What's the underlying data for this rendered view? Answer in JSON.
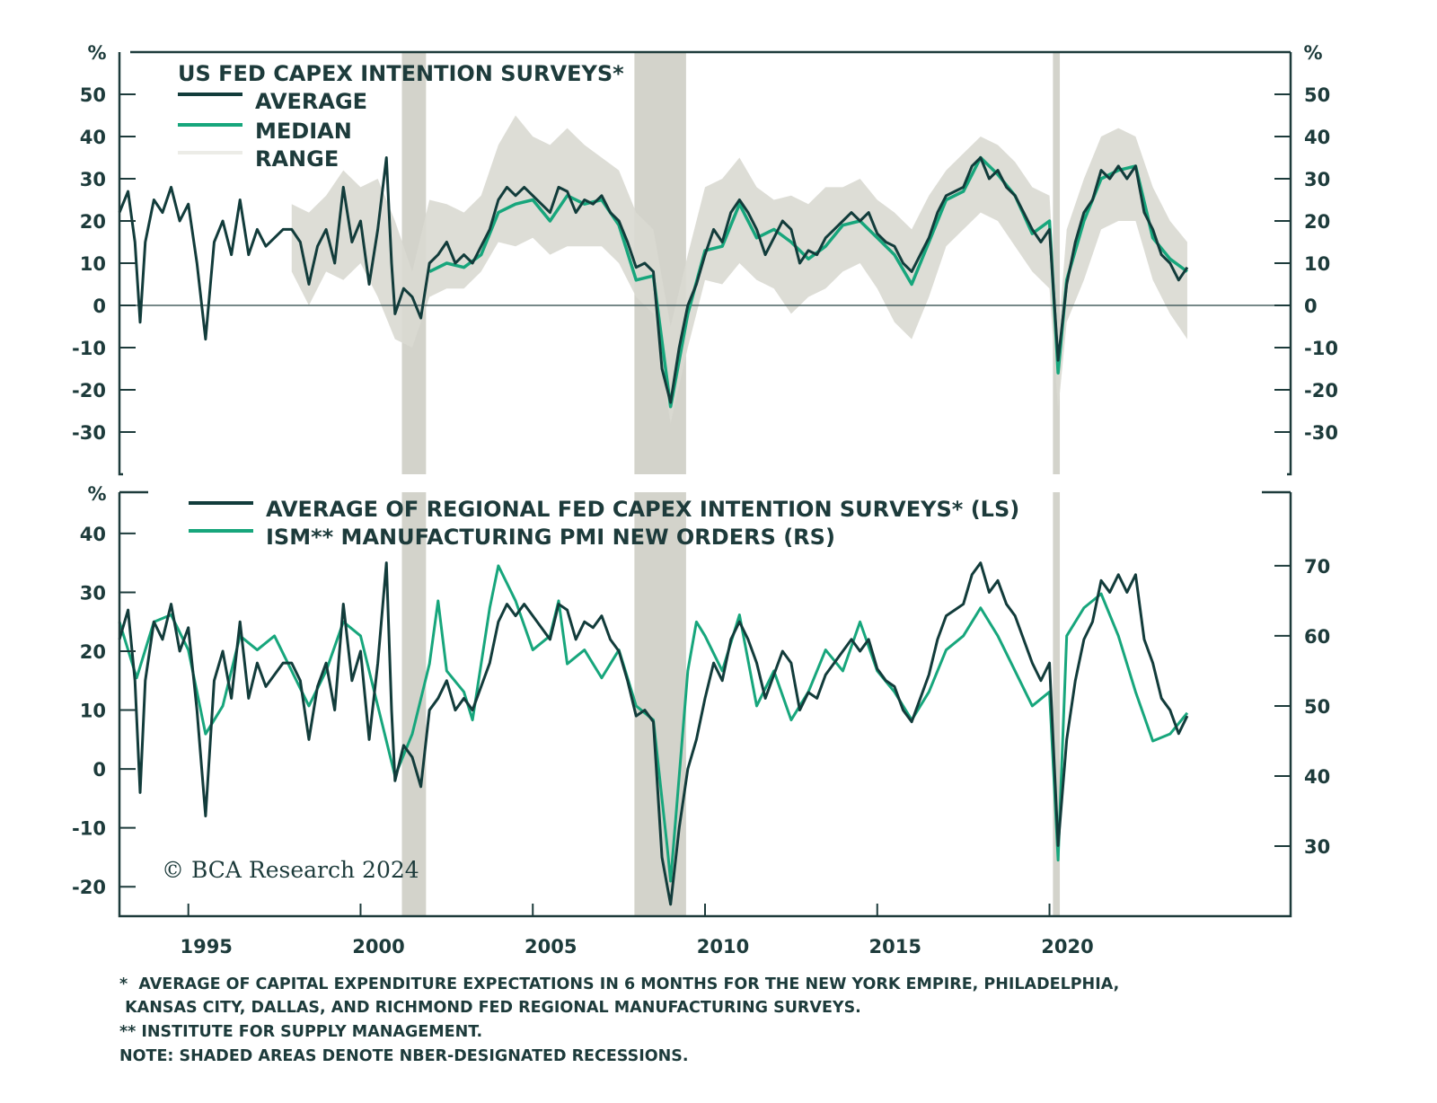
{
  "chart_data": {
    "type": "line",
    "colors": {
      "average": "#123c3b",
      "median": "#17a67c",
      "range": "#d9d9d2",
      "recession": "#d3d3cb",
      "axis": "#1d3b3b"
    },
    "x_ticks": [
      "1995",
      "2000",
      "2005",
      "2010",
      "2015",
      "2020"
    ],
    "x_tick_values": [
      1995,
      2000,
      2005,
      2010,
      2015,
      2020
    ],
    "xlim": [
      1993,
      2027
    ],
    "recessions": [
      [
        2001.2,
        2001.9
      ],
      [
        2007.95,
        2009.45
      ],
      [
        2020.1,
        2020.3
      ]
    ],
    "copyright": "© BCA Research 2024",
    "footnotes": [
      "*  AVERAGE OF CAPITAL EXPENDITURE EXPECTATIONS IN 6 MONTHS FOR THE NEW YORK EMPIRE, PHILADELPHIA,",
      " KANSAS CITY, DALLAS, AND RICHMOND FED REGIONAL MANUFACTURING SURVEYS.",
      "** INSTITUTE FOR SUPPLY MANAGEMENT.",
      "NOTE: SHADED AREAS DENOTE NBER-DESIGNATED RECESSIONS."
    ],
    "panels": [
      {
        "title": "US FED CAPEX INTENTION SURVEYS*",
        "unit_left": "%",
        "unit_right": "%",
        "ylim": [
          -40,
          60
        ],
        "y_ticks": [
          "50",
          "40",
          "30",
          "20",
          "10",
          "0",
          "-10",
          "-20",
          "-30"
        ],
        "y_tick_values": [
          50,
          40,
          30,
          20,
          10,
          0,
          -10,
          -20,
          -30
        ],
        "legend": [
          "AVERAGE",
          "MEDIAN",
          "RANGE"
        ],
        "zero_line": true
      },
      {
        "unit_left": "%",
        "ylim_left": [
          -25,
          47
        ],
        "ylim_right": [
          20,
          80.5
        ],
        "y_ticks_left": [
          "40",
          "30",
          "20",
          "10",
          "0",
          "-10",
          "-20"
        ],
        "y_tick_values_left": [
          40,
          30,
          20,
          10,
          0,
          -10,
          -20
        ],
        "y_ticks_right": [
          "70",
          "60",
          "50",
          "40",
          "30"
        ],
        "y_tick_values_right": [
          70,
          60,
          50,
          40,
          30
        ],
        "legend": [
          "AVERAGE OF REGIONAL FED CAPEX INTENTION SURVEYS* (LS)",
          "ISM** MANUFACTURING PMI NEW ORDERS (RS)"
        ]
      }
    ],
    "series": {
      "average": [
        [
          1993,
          22
        ],
        [
          1993.25,
          27
        ],
        [
          1993.45,
          15
        ],
        [
          1993.6,
          -4
        ],
        [
          1993.75,
          15
        ],
        [
          1994,
          25
        ],
        [
          1994.25,
          22
        ],
        [
          1994.5,
          28
        ],
        [
          1994.75,
          20
        ],
        [
          1995,
          24
        ],
        [
          1995.25,
          10
        ],
        [
          1995.5,
          -8
        ],
        [
          1995.75,
          15
        ],
        [
          1996,
          20
        ],
        [
          1996.25,
          12
        ],
        [
          1996.5,
          25
        ],
        [
          1996.75,
          12
        ],
        [
          1997,
          18
        ],
        [
          1997.25,
          14
        ],
        [
          1997.5,
          16
        ],
        [
          1997.75,
          18
        ],
        [
          1998,
          18
        ],
        [
          1998.25,
          15
        ],
        [
          1998.5,
          5
        ],
        [
          1998.75,
          14
        ],
        [
          1999,
          18
        ],
        [
          1999.25,
          10
        ],
        [
          1999.5,
          28
        ],
        [
          1999.75,
          15
        ],
        [
          2000,
          20
        ],
        [
          2000.25,
          5
        ],
        [
          2000.5,
          18
        ],
        [
          2000.75,
          35
        ],
        [
          2000.9,
          10
        ],
        [
          2001,
          -2
        ],
        [
          2001.25,
          4
        ],
        [
          2001.5,
          2
        ],
        [
          2001.75,
          -3
        ],
        [
          2002,
          10
        ],
        [
          2002.25,
          12
        ],
        [
          2002.5,
          15
        ],
        [
          2002.75,
          10
        ],
        [
          2003,
          12
        ],
        [
          2003.25,
          10
        ],
        [
          2003.5,
          14
        ],
        [
          2003.75,
          18
        ],
        [
          2004,
          25
        ],
        [
          2004.25,
          28
        ],
        [
          2004.5,
          26
        ],
        [
          2004.75,
          28
        ],
        [
          2005,
          26
        ],
        [
          2005.25,
          24
        ],
        [
          2005.5,
          22
        ],
        [
          2005.75,
          28
        ],
        [
          2006,
          27
        ],
        [
          2006.25,
          22
        ],
        [
          2006.5,
          25
        ],
        [
          2006.75,
          24
        ],
        [
          2007,
          26
        ],
        [
          2007.25,
          22
        ],
        [
          2007.5,
          20
        ],
        [
          2007.75,
          15
        ],
        [
          2008,
          9
        ],
        [
          2008.25,
          10
        ],
        [
          2008.5,
          8
        ],
        [
          2008.75,
          -15
        ],
        [
          2009,
          -23
        ],
        [
          2009.25,
          -10
        ],
        [
          2009.5,
          0
        ],
        [
          2009.75,
          5
        ],
        [
          2010,
          12
        ],
        [
          2010.25,
          18
        ],
        [
          2010.5,
          15
        ],
        [
          2010.75,
          22
        ],
        [
          2011,
          25
        ],
        [
          2011.25,
          22
        ],
        [
          2011.5,
          18
        ],
        [
          2011.75,
          12
        ],
        [
          2012,
          16
        ],
        [
          2012.25,
          20
        ],
        [
          2012.5,
          18
        ],
        [
          2012.75,
          10
        ],
        [
          2013,
          13
        ],
        [
          2013.25,
          12
        ],
        [
          2013.5,
          16
        ],
        [
          2013.75,
          18
        ],
        [
          2014,
          20
        ],
        [
          2014.25,
          22
        ],
        [
          2014.5,
          20
        ],
        [
          2014.75,
          22
        ],
        [
          2015,
          17
        ],
        [
          2015.25,
          15
        ],
        [
          2015.5,
          14
        ],
        [
          2015.75,
          10
        ],
        [
          2016,
          8
        ],
        [
          2016.25,
          12
        ],
        [
          2016.5,
          16
        ],
        [
          2016.75,
          22
        ],
        [
          2017,
          26
        ],
        [
          2017.25,
          27
        ],
        [
          2017.5,
          28
        ],
        [
          2017.75,
          33
        ],
        [
          2018,
          35
        ],
        [
          2018.25,
          30
        ],
        [
          2018.5,
          32
        ],
        [
          2018.75,
          28
        ],
        [
          2019,
          26
        ],
        [
          2019.25,
          22
        ],
        [
          2019.5,
          18
        ],
        [
          2019.75,
          15
        ],
        [
          2020,
          18
        ],
        [
          2020.25,
          -13
        ],
        [
          2020.5,
          5
        ],
        [
          2020.75,
          15
        ],
        [
          2021,
          22
        ],
        [
          2021.25,
          25
        ],
        [
          2021.5,
          32
        ],
        [
          2021.75,
          30
        ],
        [
          2022,
          33
        ],
        [
          2022.25,
          30
        ],
        [
          2022.5,
          33
        ],
        [
          2022.75,
          22
        ],
        [
          2023,
          18
        ],
        [
          2023.25,
          12
        ],
        [
          2023.5,
          10
        ],
        [
          2023.75,
          6
        ],
        [
          2024,
          9
        ]
      ],
      "median": [
        [
          2002,
          8
        ],
        [
          2002.5,
          10
        ],
        [
          2003,
          9
        ],
        [
          2003.5,
          12
        ],
        [
          2004,
          22
        ],
        [
          2004.5,
          24
        ],
        [
          2005,
          25
        ],
        [
          2005.5,
          20
        ],
        [
          2006,
          26
        ],
        [
          2006.5,
          24
        ],
        [
          2007,
          25
        ],
        [
          2007.5,
          19
        ],
        [
          2008,
          6
        ],
        [
          2008.5,
          7
        ],
        [
          2009,
          -24
        ],
        [
          2009.5,
          -2
        ],
        [
          2010,
          13
        ],
        [
          2010.5,
          14
        ],
        [
          2011,
          24
        ],
        [
          2011.5,
          16
        ],
        [
          2012,
          18
        ],
        [
          2012.5,
          15
        ],
        [
          2013,
          11
        ],
        [
          2013.5,
          14
        ],
        [
          2014,
          19
        ],
        [
          2014.5,
          20
        ],
        [
          2015,
          16
        ],
        [
          2015.5,
          12
        ],
        [
          2016,
          5
        ],
        [
          2016.5,
          15
        ],
        [
          2017,
          25
        ],
        [
          2017.5,
          27
        ],
        [
          2018,
          35
        ],
        [
          2018.5,
          31
        ],
        [
          2019,
          26
        ],
        [
          2019.5,
          17
        ],
        [
          2020,
          20
        ],
        [
          2020.25,
          -16
        ],
        [
          2020.5,
          6
        ],
        [
          2021,
          20
        ],
        [
          2021.5,
          30
        ],
        [
          2022,
          32
        ],
        [
          2022.5,
          33
        ],
        [
          2023,
          16
        ],
        [
          2023.5,
          11
        ],
        [
          2024,
          8
        ]
      ],
      "range": {
        "x": [
          1998,
          1998.5,
          1999,
          1999.5,
          2000,
          2000.5,
          2001,
          2001.5,
          2002,
          2002.5,
          2003,
          2003.5,
          2004,
          2004.5,
          2005,
          2005.5,
          2006,
          2006.5,
          2007,
          2007.5,
          2008,
          2008.5,
          2009,
          2009.5,
          2010,
          2010.5,
          2011,
          2011.5,
          2012,
          2012.5,
          2013,
          2013.5,
          2014,
          2014.5,
          2015,
          2015.5,
          2016,
          2016.5,
          2017,
          2017.5,
          2018,
          2018.5,
          2019,
          2019.5,
          2020,
          2020.25,
          2020.5,
          2021,
          2021.5,
          2022,
          2022.5,
          2023,
          2023.5,
          2024
        ],
        "upper": [
          24,
          22,
          26,
          32,
          28,
          30,
          20,
          8,
          25,
          24,
          22,
          26,
          38,
          45,
          40,
          38,
          42,
          38,
          35,
          32,
          22,
          18,
          -5,
          12,
          28,
          30,
          35,
          28,
          25,
          26,
          24,
          28,
          28,
          30,
          25,
          22,
          18,
          26,
          32,
          36,
          40,
          38,
          34,
          28,
          26,
          -8,
          18,
          30,
          40,
          42,
          40,
          28,
          20,
          15
        ],
        "lower": [
          8,
          0,
          8,
          6,
          10,
          2,
          -8,
          -10,
          2,
          4,
          4,
          8,
          15,
          14,
          16,
          12,
          14,
          14,
          14,
          10,
          2,
          -2,
          -28,
          -10,
          6,
          5,
          10,
          6,
          4,
          -2,
          2,
          4,
          8,
          10,
          4,
          -4,
          -8,
          2,
          14,
          18,
          22,
          20,
          14,
          8,
          4,
          -25,
          -4,
          6,
          18,
          20,
          20,
          6,
          -2,
          -8
        ]
      },
      "ism_new_orders": [
        [
          1993,
          62
        ],
        [
          1993.5,
          54
        ],
        [
          1994,
          62
        ],
        [
          1994.5,
          63
        ],
        [
          1995,
          58
        ],
        [
          1995.5,
          46
        ],
        [
          1996,
          50
        ],
        [
          1996.5,
          60
        ],
        [
          1997,
          58
        ],
        [
          1997.5,
          60
        ],
        [
          1998,
          55
        ],
        [
          1998.5,
          50
        ],
        [
          1999,
          55
        ],
        [
          1999.5,
          62
        ],
        [
          2000,
          60
        ],
        [
          2000.5,
          50
        ],
        [
          2000.9,
          42
        ],
        [
          2001,
          40
        ],
        [
          2001.5,
          46
        ],
        [
          2002,
          56
        ],
        [
          2002.25,
          65
        ],
        [
          2002.5,
          55
        ],
        [
          2003,
          52
        ],
        [
          2003.25,
          48
        ],
        [
          2003.75,
          64
        ],
        [
          2004,
          70
        ],
        [
          2004.5,
          65
        ],
        [
          2005,
          58
        ],
        [
          2005.5,
          60
        ],
        [
          2005.75,
          65
        ],
        [
          2006,
          56
        ],
        [
          2006.5,
          58
        ],
        [
          2007,
          54
        ],
        [
          2007.5,
          58
        ],
        [
          2008,
          50
        ],
        [
          2008.5,
          48
        ],
        [
          2008.9,
          30
        ],
        [
          2009,
          25
        ],
        [
          2009.5,
          55
        ],
        [
          2009.75,
          62
        ],
        [
          2010,
          60
        ],
        [
          2010.5,
          55
        ],
        [
          2011,
          63
        ],
        [
          2011.5,
          50
        ],
        [
          2012,
          55
        ],
        [
          2012.5,
          48
        ],
        [
          2013,
          52
        ],
        [
          2013.5,
          58
        ],
        [
          2014,
          55
        ],
        [
          2014.5,
          62
        ],
        [
          2015,
          55
        ],
        [
          2015.5,
          52
        ],
        [
          2016,
          48
        ],
        [
          2016.5,
          52
        ],
        [
          2017,
          58
        ],
        [
          2017.5,
          60
        ],
        [
          2018,
          64
        ],
        [
          2018.5,
          60
        ],
        [
          2019,
          55
        ],
        [
          2019.5,
          50
        ],
        [
          2020,
          52
        ],
        [
          2020.25,
          28
        ],
        [
          2020.5,
          60
        ],
        [
          2021,
          64
        ],
        [
          2021.5,
          66
        ],
        [
          2022,
          60
        ],
        [
          2022.5,
          52
        ],
        [
          2023,
          45
        ],
        [
          2023.5,
          46
        ],
        [
          2024,
          49
        ]
      ]
    }
  }
}
